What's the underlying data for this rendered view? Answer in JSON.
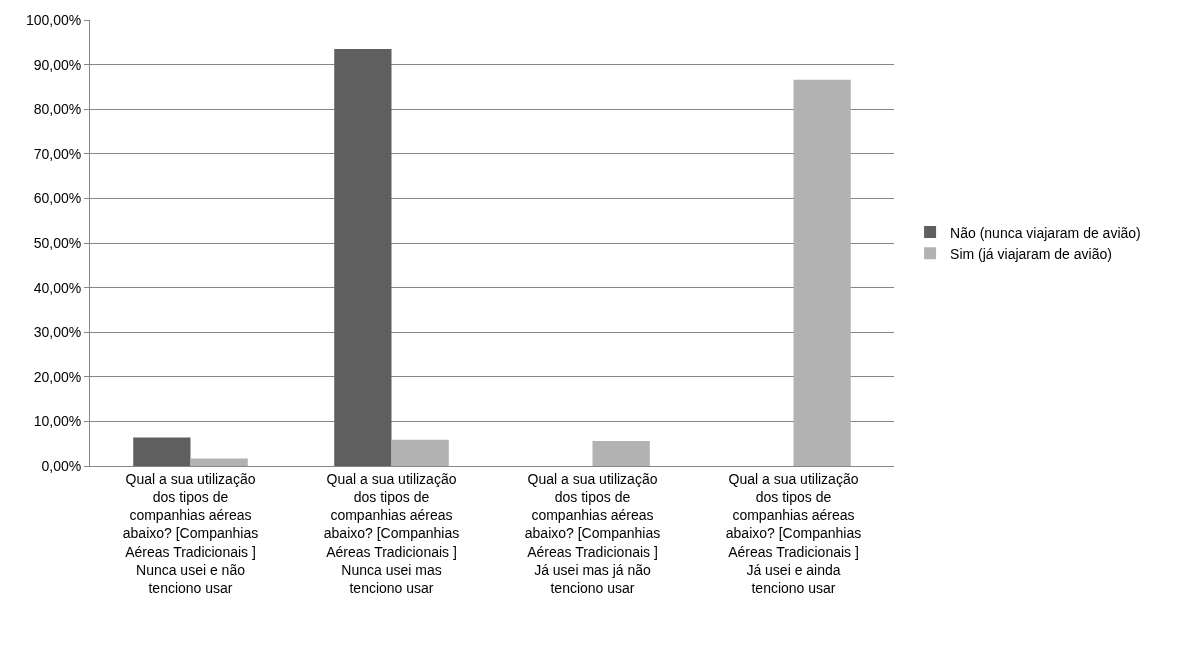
{
  "chart_data": {
    "type": "bar",
    "categories": [
      "Qual a sua utilização dos tipos de companhias aéreas abaixo? [Companhias Aéreas Tradicionais ] Nunca usei e não tenciono usar",
      "Qual a sua utilização dos tipos de companhias aéreas abaixo? [Companhias Aéreas Tradicionais ] Nunca usei mas tenciono usar",
      "Qual a sua utilização dos tipos de companhias aéreas abaixo? [Companhias Aéreas Tradicionais ] Já usei mas já não tenciono usar",
      "Qual a sua utilização dos tipos de companhias aéreas abaixo? [Companhias Aéreas Tradicionais ] Já usei e ainda tenciono usar"
    ],
    "series": [
      {
        "name": "Não (nunca viajaram de avião)",
        "color": "#5f5f5f",
        "values": [
          6.4,
          93.5,
          0,
          0
        ]
      },
      {
        "name": "Sim (já viajaram de avião)",
        "color": "#b2b2b2",
        "values": [
          1.7,
          5.9,
          5.6,
          86.6
        ]
      }
    ],
    "ylim": [
      0,
      100
    ],
    "yticks": [
      {
        "value": 0,
        "label": "0,00%"
      },
      {
        "value": 10,
        "label": "10,00%"
      },
      {
        "value": 20,
        "label": "20,00%"
      },
      {
        "value": 30,
        "label": "30,00%"
      },
      {
        "value": 40,
        "label": "40,00%"
      },
      {
        "value": 50,
        "label": "50,00%"
      },
      {
        "value": 60,
        "label": "60,00%"
      },
      {
        "value": 70,
        "label": "70,00%"
      },
      {
        "value": 80,
        "label": "80,00%"
      },
      {
        "value": 90,
        "label": "90,00%"
      },
      {
        "value": 100,
        "label": "100,00%"
      }
    ],
    "grid": "y",
    "legend": "right"
  }
}
